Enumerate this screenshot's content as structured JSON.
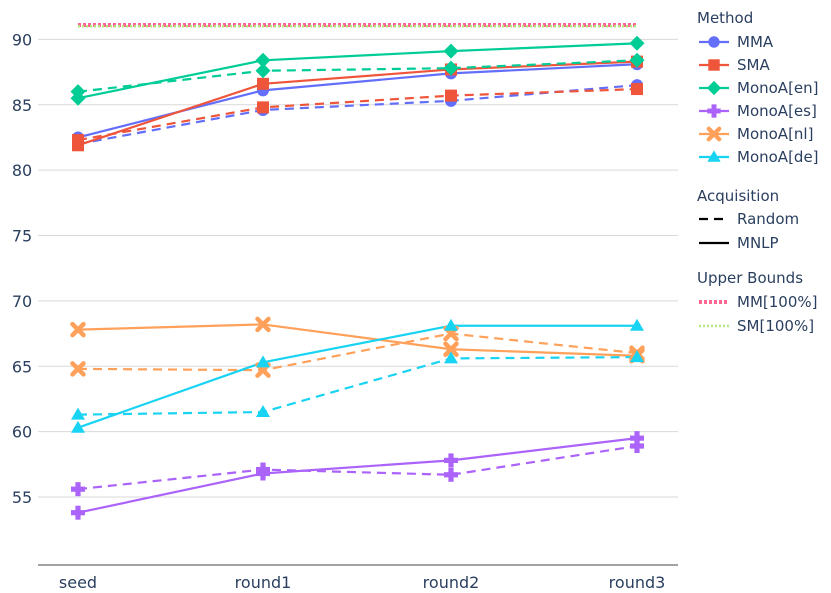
{
  "chart_data": {
    "type": "line",
    "categories": [
      "seed",
      "round1",
      "round2",
      "round3"
    ],
    "ylim": [
      49.8,
      92.4
    ],
    "yticks": [
      55,
      60,
      65,
      70,
      75,
      80,
      85,
      90
    ],
    "grid": true,
    "colors": {
      "MMA": "#636efa",
      "SMA": "#ef553b",
      "MonoA[en]": "#00cc96",
      "MonoA[es]": "#ab63fa",
      "MonoA[nl]": "#ffa15a",
      "MonoA[de]": "#19d3f3",
      "MM[100%]": "#ff6692",
      "SM[100%]": "#b6e880"
    },
    "series": [
      {
        "method": "MMA",
        "acquisition": "Random",
        "marker": "circle",
        "values": [
          82.0,
          84.6,
          85.3,
          86.5
        ]
      },
      {
        "method": "MMA",
        "acquisition": "MNLP",
        "marker": "circle",
        "values": [
          82.5,
          86.1,
          87.4,
          88.1
        ]
      },
      {
        "method": "SMA",
        "acquisition": "Random",
        "marker": "square",
        "values": [
          82.3,
          84.8,
          85.7,
          86.2
        ]
      },
      {
        "method": "SMA",
        "acquisition": "MNLP",
        "marker": "square",
        "values": [
          81.9,
          86.6,
          87.7,
          88.3
        ]
      },
      {
        "method": "MonoA[en]",
        "acquisition": "Random",
        "marker": "diamond",
        "values": [
          86.0,
          87.6,
          87.8,
          88.4
        ]
      },
      {
        "method": "MonoA[en]",
        "acquisition": "MNLP",
        "marker": "diamond",
        "values": [
          85.5,
          88.4,
          89.1,
          89.7
        ]
      },
      {
        "method": "MonoA[es]",
        "acquisition": "Random",
        "marker": "cross",
        "values": [
          55.6,
          57.1,
          56.7,
          58.9
        ]
      },
      {
        "method": "MonoA[es]",
        "acquisition": "MNLP",
        "marker": "cross",
        "values": [
          53.8,
          56.8,
          57.8,
          59.5
        ]
      },
      {
        "method": "MonoA[nl]",
        "acquisition": "Random",
        "marker": "x",
        "values": [
          64.8,
          64.7,
          67.5,
          66.0
        ]
      },
      {
        "method": "MonoA[nl]",
        "acquisition": "MNLP",
        "marker": "x",
        "values": [
          67.8,
          68.2,
          66.3,
          65.8
        ]
      },
      {
        "method": "MonoA[de]",
        "acquisition": "Random",
        "marker": "triangle",
        "values": [
          61.3,
          61.5,
          65.6,
          65.7
        ]
      },
      {
        "method": "MonoA[de]",
        "acquisition": "MNLP",
        "marker": "triangle",
        "values": [
          60.3,
          65.3,
          68.1,
          68.1
        ]
      }
    ],
    "upper_bounds": [
      {
        "name": "MM[100%]",
        "value": 91.1
      },
      {
        "name": "SM[100%]",
        "value": 91.0
      }
    ],
    "legend": {
      "placement": "right",
      "method_title": "Method",
      "methods": [
        {
          "name": "MMA",
          "marker": "circle"
        },
        {
          "name": "SMA",
          "marker": "square"
        },
        {
          "name": "MonoA[en]",
          "marker": "diamond"
        },
        {
          "name": "MonoA[es]",
          "marker": "cross"
        },
        {
          "name": "MonoA[nl]",
          "marker": "x"
        },
        {
          "name": "MonoA[de]",
          "marker": "triangle"
        }
      ],
      "acquisition_title": "Acquisition",
      "acquisitions": [
        {
          "name": "Random",
          "dash": "dashed"
        },
        {
          "name": "MNLP",
          "dash": "solid"
        }
      ],
      "bounds_title": "Upper Bounds",
      "bounds": [
        {
          "name": "MM[100%]",
          "dash": "dotted"
        },
        {
          "name": "SM[100%]",
          "dash": "dotted"
        }
      ]
    }
  }
}
